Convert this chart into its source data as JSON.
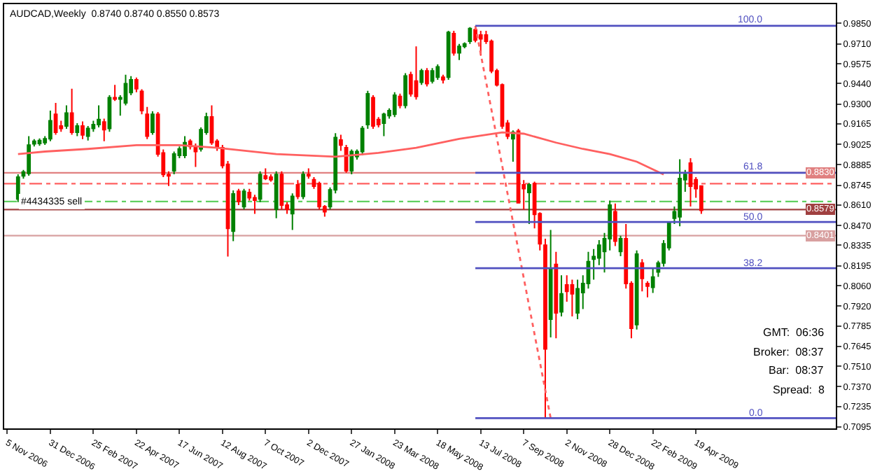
{
  "chart_data": {
    "type": "candlestick",
    "title": "AUDCAD,Weekly  0.8740 0.8740 0.8550 0.8573",
    "colors": [
      "#008000",
      "#008000",
      "#008000",
      "#008000",
      "#008000",
      "#008000",
      "#008000",
      "#ff0000",
      "#ff0000",
      "#008000",
      "#ff0000",
      "#008000",
      "#ff0000",
      "#008000",
      "#008000",
      "#008000",
      "#ff0000",
      "#008000",
      "#ff0000",
      "#008000",
      "#008000",
      "#008000",
      "#ff0000",
      "#ff0000",
      "#ff0000",
      "#008000",
      "#ff0000",
      "#ff0000",
      "#ff0000",
      "#008000",
      "#008000",
      "#008000",
      "#ff0000",
      "#ff0000",
      "#008000",
      "#008000",
      "#ff0000",
      "#ff0000",
      "#ff0000",
      "#ff0000",
      "#008000",
      "#ff0000",
      "#008000",
      "#ff0000",
      "#ff0000",
      "#008000",
      "#ff0000",
      "#ff0000",
      "#008000",
      "#ff0000",
      "#ff0000",
      "#008000",
      "#ff0000",
      "#008000",
      "#ff0000",
      "#ff0000",
      "#ff0000",
      "#ff0000",
      "#008000",
      "#008000",
      "#ff0000",
      "#ff0000",
      "#008000",
      "#008000",
      "#008000",
      "#008000",
      "#ff0000",
      "#ff0000",
      "#008000",
      "#008000",
      "#008000",
      "#ff0000",
      "#008000",
      "#ff0000",
      "#ff0000",
      "#008000",
      "#ff0000",
      "#008000",
      "#008000",
      "#ff0000",
      "#008000",
      "#ff0000",
      "#008000",
      "#008000",
      "#008000",
      "#ff0000",
      "#ff0000",
      "#ff0000",
      "#ff0000",
      "#ff0000",
      "#ff0000",
      "#ff0000",
      "#008000",
      "#ff0000",
      "#ff0000",
      "#008000",
      "#ff0000",
      "#ff0000",
      "#ff0000",
      "#008000",
      "#ff0000",
      "#008000",
      "#ff0000",
      "#ff0000",
      "#008000",
      "#008000",
      "#008000",
      "#008000",
      "#008000",
      "#008000",
      "#008000",
      "#ff0000",
      "#008000",
      "#ff0000",
      "#ff0000",
      "#008000",
      "#ff0000",
      "#ff0000",
      "#008000",
      "#008000",
      "#008000",
      "#008000",
      "#008000",
      "#008000",
      "#008000",
      "#ff0000",
      "#ff0000",
      "#ff0000"
    ],
    "grid": false,
    "x": [
      "2006-11-19",
      "2006-11-26",
      "2006-12-03",
      "2006-12-10",
      "2006-12-17",
      "2006-12-24",
      "2006-12-31",
      "2007-01-07",
      "2007-01-14",
      "2007-01-21",
      "2007-01-28",
      "2007-02-04",
      "2007-02-11",
      "2007-02-18",
      "2007-02-25",
      "2007-03-04",
      "2007-03-11",
      "2007-03-18",
      "2007-03-25",
      "2007-04-01",
      "2007-04-08",
      "2007-04-15",
      "2007-04-22",
      "2007-04-29",
      "2007-05-06",
      "2007-05-13",
      "2007-05-20",
      "2007-05-27",
      "2007-06-03",
      "2007-06-10",
      "2007-06-17",
      "2007-06-24",
      "2007-07-01",
      "2007-07-08",
      "2007-07-15",
      "2007-07-22",
      "2007-07-29",
      "2007-08-05",
      "2007-08-12",
      "2007-08-19",
      "2007-08-26",
      "2007-09-02",
      "2007-09-09",
      "2007-09-16",
      "2007-09-23",
      "2007-09-30",
      "2007-10-07",
      "2007-10-14",
      "2007-10-21",
      "2007-10-28",
      "2007-11-04",
      "2007-11-11",
      "2007-11-18",
      "2007-11-25",
      "2007-12-02",
      "2007-12-09",
      "2007-12-16",
      "2007-12-23",
      "2007-12-30",
      "2008-01-06",
      "2008-01-13",
      "2008-01-20",
      "2008-01-27",
      "2008-02-03",
      "2008-02-10",
      "2008-02-17",
      "2008-02-24",
      "2008-03-02",
      "2008-03-09",
      "2008-03-16",
      "2008-03-23",
      "2008-03-30",
      "2008-04-06",
      "2008-04-13",
      "2008-04-20",
      "2008-04-27",
      "2008-05-04",
      "2008-05-11",
      "2008-05-18",
      "2008-05-25",
      "2008-06-01",
      "2008-06-08",
      "2008-06-15",
      "2008-06-22",
      "2008-06-29",
      "2008-07-06",
      "2008-07-13",
      "2008-07-20",
      "2008-07-27",
      "2008-08-03",
      "2008-08-10",
      "2008-08-17",
      "2008-08-24",
      "2008-08-31",
      "2008-09-07",
      "2008-09-14",
      "2008-09-21",
      "2008-09-28",
      "2008-10-05",
      "2008-10-12",
      "2008-10-19",
      "2008-10-26",
      "2008-11-02",
      "2008-11-09",
      "2008-11-16",
      "2008-11-23",
      "2008-11-30",
      "2008-12-07",
      "2008-12-14",
      "2008-12-21",
      "2008-12-28",
      "2009-01-04",
      "2009-01-11",
      "2009-01-18",
      "2009-01-25",
      "2009-02-01",
      "2009-02-08",
      "2009-02-15",
      "2009-02-22",
      "2009-03-01",
      "2009-03-08",
      "2009-03-15",
      "2009-03-22",
      "2009-03-29",
      "2009-04-05",
      "2009-04-12",
      "2009-04-19",
      "2009-04-26"
    ],
    "ohlc": [
      [
        0.8651,
        0.882,
        0.863,
        0.88
      ],
      [
        0.8809,
        0.885,
        0.879,
        0.8835
      ],
      [
        0.8826,
        0.908,
        0.881,
        0.9019
      ],
      [
        0.9027,
        0.906,
        0.901,
        0.9045
      ],
      [
        0.903,
        0.9065,
        0.9015,
        0.905
      ],
      [
        0.9036,
        0.908,
        0.902,
        0.9062
      ],
      [
        0.9062,
        0.9255,
        0.9045,
        0.9185
      ],
      [
        0.9229,
        0.9307,
        0.909,
        0.9106
      ],
      [
        0.915,
        0.9185,
        0.911,
        0.9133
      ],
      [
        0.915,
        0.929,
        0.913,
        0.9238
      ],
      [
        0.9238,
        0.9404,
        0.909,
        0.9106
      ],
      [
        0.9106,
        0.9168,
        0.908,
        0.915
      ],
      [
        0.915,
        0.918,
        0.906,
        0.9089
      ],
      [
        0.908,
        0.915,
        0.905,
        0.9133
      ],
      [
        0.9133,
        0.9185,
        0.911,
        0.9159
      ],
      [
        0.9159,
        0.929,
        0.914,
        0.9194
      ],
      [
        0.9177,
        0.92,
        0.9045,
        0.9124
      ],
      [
        0.9133,
        0.936,
        0.911,
        0.9343
      ],
      [
        0.9343,
        0.943,
        0.932,
        0.9334
      ],
      [
        0.9334,
        0.936,
        0.922,
        0.9343
      ],
      [
        0.9307,
        0.95,
        0.929,
        0.9439
      ],
      [
        0.9378,
        0.949,
        0.936,
        0.9465
      ],
      [
        0.9465,
        0.948,
        0.938,
        0.9404
      ],
      [
        0.9386,
        0.94,
        0.923,
        0.9255
      ],
      [
        0.9229,
        0.928,
        0.906,
        0.908
      ],
      [
        0.9106,
        0.925,
        0.909,
        0.9229
      ],
      [
        0.9229,
        0.9245,
        0.894,
        0.8958
      ],
      [
        0.8966,
        0.899,
        0.88,
        0.8818
      ],
      [
        0.8818,
        0.884,
        0.874,
        0.8809
      ],
      [
        0.8844,
        0.8975,
        0.882,
        0.8958
      ],
      [
        0.8949,
        0.901,
        0.893,
        0.8993
      ],
      [
        0.8949,
        0.908,
        0.893,
        0.9036
      ],
      [
        0.9045,
        0.906,
        0.899,
        0.901
      ],
      [
        0.901,
        0.903,
        0.887,
        0.8975
      ],
      [
        0.8993,
        0.914,
        0.8975,
        0.9124
      ],
      [
        0.9106,
        0.924,
        0.909,
        0.9212
      ],
      [
        0.9212,
        0.929,
        0.902,
        0.9036
      ],
      [
        0.9045,
        0.906,
        0.898,
        0.9001
      ],
      [
        0.9001,
        0.902,
        0.886,
        0.8879
      ],
      [
        0.8888,
        0.891,
        0.8258,
        0.845
      ],
      [
        0.8432,
        0.871,
        0.8363,
        0.8686
      ],
      [
        0.8704,
        0.872,
        0.861,
        0.8634
      ],
      [
        0.8599,
        0.872,
        0.858,
        0.8704
      ],
      [
        0.8695,
        0.872,
        0.864,
        0.866
      ],
      [
        0.866,
        0.868,
        0.855,
        0.8643
      ],
      [
        0.8651,
        0.884,
        0.863,
        0.8818
      ],
      [
        0.8809,
        0.886,
        0.878,
        0.8791
      ],
      [
        0.88,
        0.882,
        0.877,
        0.8783
      ],
      [
        0.8581,
        0.884,
        0.852,
        0.8818
      ],
      [
        0.8818,
        0.884,
        0.858,
        0.8609
      ],
      [
        0.8609,
        0.863,
        0.855,
        0.8581
      ],
      [
        0.8551,
        0.869,
        0.844,
        0.8669
      ],
      [
        0.8748,
        0.878,
        0.865,
        0.8669
      ],
      [
        0.8669,
        0.884,
        0.865,
        0.8818
      ],
      [
        0.8818,
        0.886,
        0.879,
        0.8809
      ],
      [
        0.8783,
        0.88,
        0.872,
        0.8739
      ],
      [
        0.8756,
        0.877,
        0.858,
        0.8599
      ],
      [
        0.8599,
        0.861,
        0.853,
        0.8564
      ],
      [
        0.8599,
        0.873,
        0.858,
        0.8713
      ],
      [
        0.8713,
        0.91,
        0.869,
        0.9071
      ],
      [
        0.9054,
        0.909,
        0.898,
        0.9019
      ],
      [
        0.9001,
        0.902,
        0.883,
        0.8844
      ],
      [
        0.8844,
        0.899,
        0.882,
        0.8975
      ],
      [
        0.894,
        0.899,
        0.892,
        0.8975
      ],
      [
        0.8975,
        0.915,
        0.895,
        0.9133
      ],
      [
        0.9159,
        0.939,
        0.913,
        0.9369
      ],
      [
        0.9343,
        0.936,
        0.913,
        0.915
      ],
      [
        0.9194,
        0.921,
        0.914,
        0.9159
      ],
      [
        0.9168,
        0.924,
        0.908,
        0.9229
      ],
      [
        0.922,
        0.927,
        0.92,
        0.9255
      ],
      [
        0.9229,
        0.938,
        0.921,
        0.936
      ],
      [
        0.9351,
        0.937,
        0.927,
        0.929
      ],
      [
        0.929,
        0.951,
        0.927,
        0.9491
      ],
      [
        0.95,
        0.952,
        0.935,
        0.9369
      ],
      [
        0.9457,
        0.9693,
        0.933,
        0.9351
      ],
      [
        0.9448,
        0.954,
        0.943,
        0.9526
      ],
      [
        0.9526,
        0.9545,
        0.942,
        0.9439
      ],
      [
        0.9457,
        0.9545,
        0.944,
        0.9526
      ],
      [
        0.9483,
        0.957,
        0.9465,
        0.9553
      ],
      [
        0.9483,
        0.95,
        0.944,
        0.9465
      ],
      [
        0.9483,
        0.98,
        0.9465,
        0.9789
      ],
      [
        0.978,
        0.98,
        0.963,
        0.9649
      ],
      [
        0.9649,
        0.971,
        0.96,
        0.9693
      ],
      [
        0.9693,
        0.972,
        0.968,
        0.971
      ],
      [
        0.9728,
        0.9825,
        0.971,
        0.9815
      ],
      [
        0.9806,
        0.9833,
        0.972,
        0.9736
      ],
      [
        0.9771,
        0.98,
        0.963,
        0.9745
      ],
      [
        0.9771,
        0.98,
        0.971,
        0.9728
      ],
      [
        0.9728,
        0.974,
        0.951,
        0.9526
      ],
      [
        0.9526,
        0.954,
        0.942,
        0.943
      ],
      [
        0.943,
        0.944,
        0.913,
        0.915
      ],
      [
        0.9168,
        0.919,
        0.906,
        0.908
      ],
      [
        0.9062,
        0.912,
        0.8906,
        0.9106
      ],
      [
        0.9115,
        0.913,
        0.862,
        0.8625
      ],
      [
        0.8748,
        0.878,
        0.8581,
        0.8722
      ],
      [
        0.8695,
        0.876,
        0.848,
        0.8748
      ],
      [
        0.8756,
        0.877,
        0.845,
        0.8546
      ],
      [
        0.8551,
        0.856,
        0.83,
        0.8345
      ],
      [
        0.8336,
        0.838,
        0.7155,
        0.7628
      ],
      [
        0.783,
        0.844,
        0.7706,
        0.817
      ],
      [
        0.8205,
        0.829,
        0.77,
        0.7873
      ],
      [
        0.7881,
        0.813,
        0.785,
        0.8004
      ],
      [
        0.8065,
        0.813,
        0.795,
        0.8021
      ],
      [
        0.8065,
        0.81,
        0.785,
        0.8004
      ],
      [
        0.7873,
        0.81,
        0.783,
        0.8039
      ],
      [
        0.8012,
        0.813,
        0.79,
        0.8074
      ],
      [
        0.8074,
        0.829,
        0.804,
        0.8223
      ],
      [
        0.824,
        0.831,
        0.81,
        0.8258
      ],
      [
        0.8249,
        0.837,
        0.82,
        0.8336
      ],
      [
        0.8293,
        0.842,
        0.815,
        0.838
      ],
      [
        0.838,
        0.864,
        0.83,
        0.8609
      ],
      [
        0.8564,
        0.862,
        0.833,
        0.8363
      ],
      [
        0.8293,
        0.84,
        0.826,
        0.838
      ],
      [
        0.838,
        0.848,
        0.804,
        0.8074
      ],
      [
        0.8074,
        0.809,
        0.77,
        0.7768
      ],
      [
        0.7794,
        0.83,
        0.776,
        0.8275
      ],
      [
        0.8214,
        0.824,
        0.802,
        0.8109
      ],
      [
        0.8074,
        0.809,
        0.798,
        0.8056
      ],
      [
        0.8048,
        0.818,
        0.801,
        0.8118
      ],
      [
        0.8153,
        0.823,
        0.812,
        0.8214
      ],
      [
        0.8214,
        0.837,
        0.819,
        0.8345
      ],
      [
        0.8319,
        0.85,
        0.83,
        0.8485
      ],
      [
        0.852,
        0.86,
        0.848,
        0.8564
      ],
      [
        0.8529,
        0.8923,
        0.8465,
        0.8791
      ],
      [
        0.8783,
        0.885,
        0.87,
        0.8818
      ],
      [
        0.8896,
        0.893,
        0.86,
        0.8739
      ],
      [
        0.8783,
        0.88,
        0.866,
        0.8722
      ],
      [
        0.874,
        0.874,
        0.855,
        0.8573
      ]
    ],
    "series": [
      {
        "type": "line",
        "color": "#ff6060",
        "x": [
          "2006-11-19",
          "2006-12-24",
          "2007-02-18",
          "2007-04-22",
          "2007-06-17",
          "2007-08-05",
          "2007-10-21",
          "2008-01-06",
          "2008-03-02",
          "2008-04-20",
          "2008-06-15",
          "2008-08-10",
          "2008-09-07",
          "2008-10-19",
          "2008-11-23",
          "2008-12-28",
          "2009-02-01",
          "2009-03-08"
        ],
        "values": [
          0.8958,
          0.8975,
          0.8993,
          0.9019,
          0.9019,
          0.9001,
          0.8958,
          0.894,
          0.8966,
          0.9001,
          0.9062,
          0.9106,
          0.9097,
          0.9036,
          0.8993,
          0.8958,
          0.8906,
          0.8818
        ]
      },
      {
        "type": "line",
        "color": "#ff6060",
        "line_style": "dotted",
        "x": [
          "2008-07-06",
          "2008-10-12"
        ],
        "values": [
          0.9833,
          0.7155
        ]
      },
      {
        "type": "line",
        "name": "100.0",
        "color": "#5050c0",
        "x": [
          "2008-07-06",
          "2009-10-18"
        ],
        "values": [
          0.9833,
          0.9833
        ]
      },
      {
        "type": "line",
        "name": "61.8",
        "color": "#5050c0",
        "x": [
          "2008-07-06",
          "2009-10-18"
        ],
        "values": [
          0.883,
          0.883
        ]
      },
      {
        "type": "line",
        "name": "50.0",
        "color": "#5050c0",
        "x": [
          "2008-07-06",
          "2009-10-18"
        ],
        "values": [
          0.8494,
          0.8494
        ]
      },
      {
        "type": "line",
        "name": "38.2",
        "color": "#5050c0",
        "x": [
          "2008-07-06",
          "2009-10-18"
        ],
        "values": [
          0.8179,
          0.8179
        ]
      },
      {
        "type": "line",
        "name": "0.0",
        "color": "#5050c0",
        "x": [
          "2008-07-06",
          "2009-10-18"
        ],
        "values": [
          0.7155,
          0.7155
        ]
      }
    ],
    "ref_lines": [
      {
        "axis": "y",
        "value": 0.883,
        "label": "0.8830",
        "color": "#e08080"
      },
      {
        "axis": "y",
        "value": 0.8756,
        "color": "#ff6060",
        "line_style": "dashed"
      },
      {
        "axis": "y",
        "value": 0.8634,
        "color": "#60d060",
        "line_style": "dashed"
      },
      {
        "axis": "y",
        "value": 0.8579,
        "label": "0.8579",
        "color": "#a04040"
      },
      {
        "axis": "y",
        "value": 0.8401,
        "label": "0.8401",
        "color": "#d8a0a0"
      }
    ],
    "annotations": [
      {
        "text": "#4434335 sell",
        "x": "2006-11-19",
        "y": 0.8634
      },
      "GMT:  06:36",
      "Broker:  08:37",
      "Bar:  08:37",
      "Spread:  8"
    ],
    "xlim": [
      "2006-11-01",
      "2009-10-18"
    ],
    "xticks": [
      {
        "value": "2006-11-05",
        "label": "5 Nov 2006"
      },
      {
        "value": "2006-12-31",
        "label": "31 Dec 2006"
      },
      {
        "value": "2007-02-25",
        "label": "25 Feb 2007"
      },
      {
        "value": "2007-04-22",
        "label": "22 Apr 2007"
      },
      {
        "value": "2007-06-17",
        "label": "17 Jun 2007"
      },
      {
        "value": "2007-08-12",
        "label": "12 Aug 2007"
      },
      {
        "value": "2007-10-07",
        "label": "7 Oct 2007"
      },
      {
        "value": "2007-12-02",
        "label": "2 Dec 2007"
      },
      {
        "value": "2008-01-27",
        "label": "27 Jan 2008"
      },
      {
        "value": "2008-03-23",
        "label": "23 Mar 2008"
      },
      {
        "value": "2008-05-18",
        "label": "18 May 2008"
      },
      {
        "value": "2008-07-13",
        "label": "13 Jul 2008"
      },
      {
        "value": "2008-09-07",
        "label": "7 Sep 2008"
      },
      {
        "value": "2008-11-02",
        "label": "2 Nov 2008"
      },
      {
        "value": "2008-12-28",
        "label": "28 Dec 2008"
      },
      {
        "value": "2009-02-22",
        "label": "22 Feb 2009"
      },
      {
        "value": "2009-04-19",
        "label": "19 Apr 2009"
      }
    ],
    "ylim": [
      0.7085,
      0.9981
    ],
    "yticks": [
      {
        "value": 0.985,
        "label": "0.9850"
      },
      {
        "value": 0.971,
        "label": "0.9710"
      },
      {
        "value": 0.9575,
        "label": "0.9575"
      },
      {
        "value": 0.944,
        "label": "0.9440"
      },
      {
        "value": 0.93,
        "label": "0.9300"
      },
      {
        "value": 0.9165,
        "label": "0.9165"
      },
      {
        "value": 0.9025,
        "label": "0.9025"
      },
      {
        "value": 0.8885,
        "label": "0.8885"
      },
      {
        "value": 0.8745,
        "label": "0.8745"
      },
      {
        "value": 0.861,
        "label": "0.8610"
      },
      {
        "value": 0.847,
        "label": "0.8470"
      },
      {
        "value": 0.8335,
        "label": "0.8335"
      },
      {
        "value": 0.8195,
        "label": "0.8195"
      },
      {
        "value": 0.806,
        "label": "0.8060"
      },
      {
        "value": 0.792,
        "label": "0.7920"
      },
      {
        "value": 0.7785,
        "label": "0.7785"
      },
      {
        "value": 0.7645,
        "label": "0.7645"
      },
      {
        "value": 0.751,
        "label": "0.7510"
      },
      {
        "value": 0.737,
        "label": "0.7370"
      },
      {
        "value": 0.7235,
        "label": "0.7235"
      },
      {
        "value": 0.7095,
        "label": "0.7095"
      }
    ]
  }
}
